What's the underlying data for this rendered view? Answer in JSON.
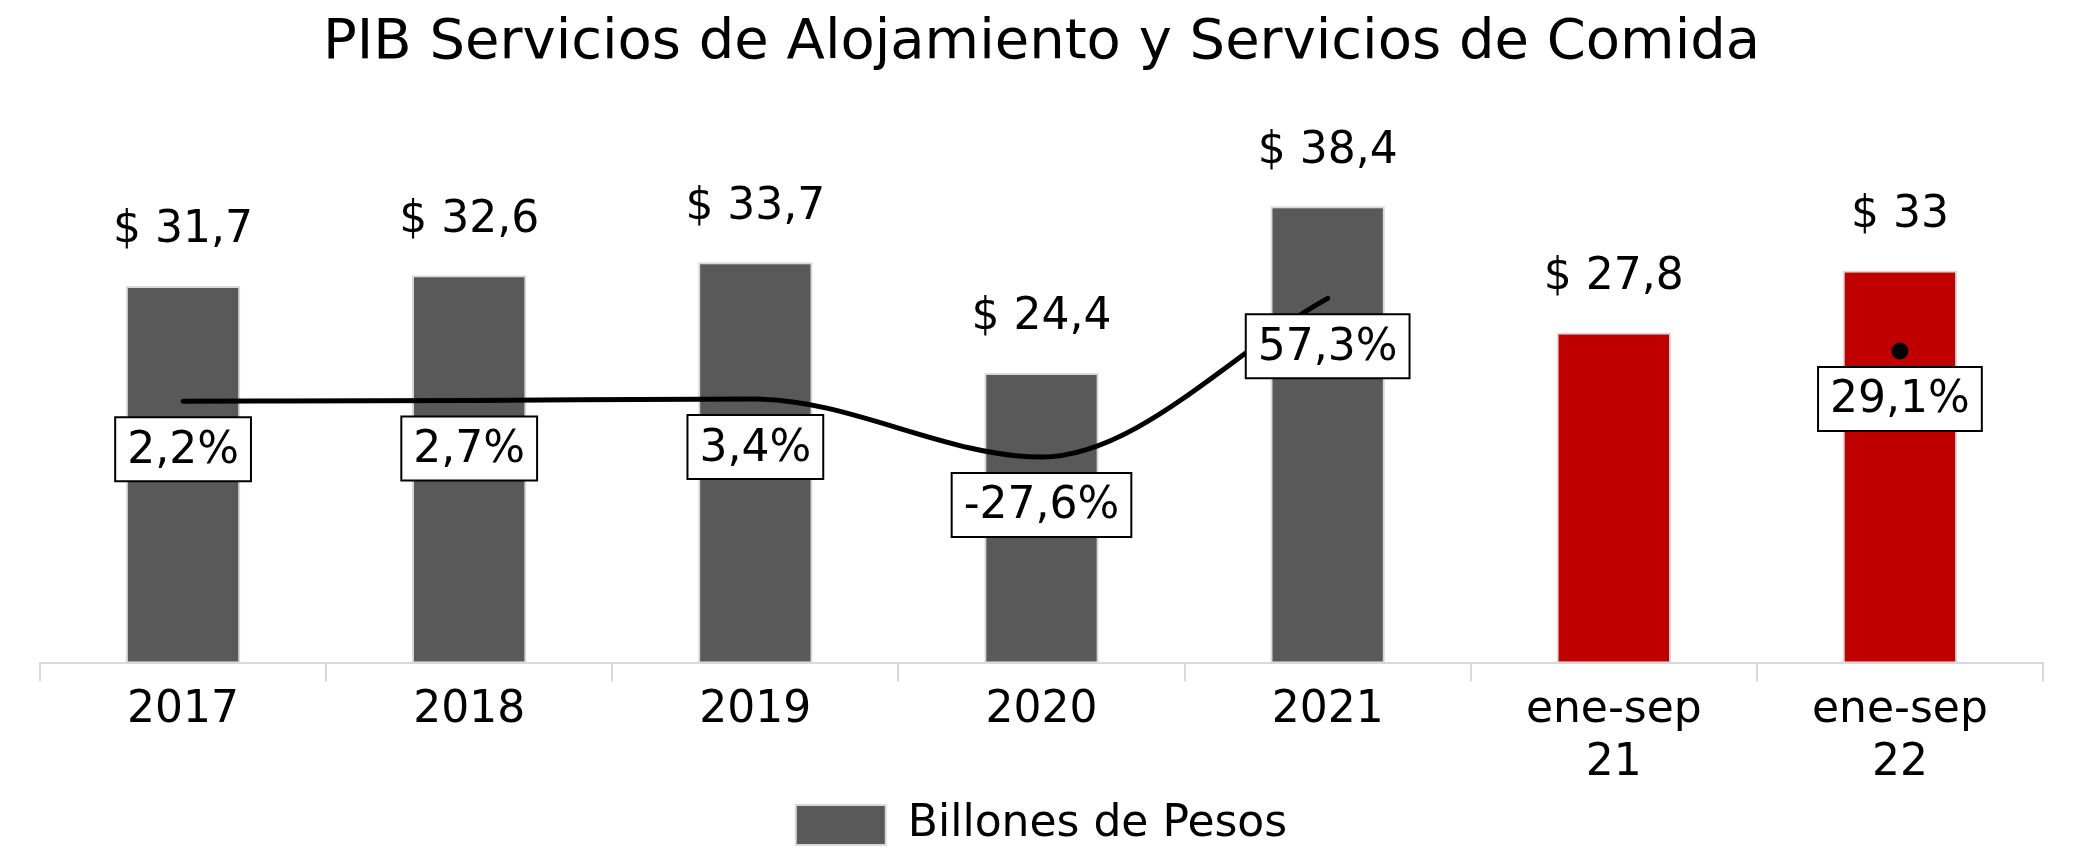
{
  "chart_data": {
    "type": "bar",
    "title": "PIB Servicios de Alojamiento y Servicios de Comida",
    "categories": [
      "2017",
      "2018",
      "2019",
      "2020",
      "2021",
      "ene-sep 21",
      "ene-sep 22"
    ],
    "series": [
      {
        "name": "Billones de Pesos",
        "color": "#595959",
        "colors": [
          "#595959",
          "#595959",
          "#595959",
          "#595959",
          "#595959",
          "#c00000",
          "#c00000"
        ],
        "values": [
          31.7,
          32.6,
          33.7,
          24.4,
          38.4,
          27.8,
          33
        ],
        "value_labels": [
          "$ 31,7",
          "$ 32,6",
          "$ 33,7",
          "$ 24,4",
          "$ 38,4",
          "$ 27,8",
          "$ 33"
        ]
      },
      {
        "type": "line",
        "axis": "y2",
        "color": "#000000",
        "values": [
          2.2,
          2.7,
          3.4,
          -27.6,
          57.3,
          null,
          29.1
        ],
        "value_labels": [
          "2,2%",
          "2,7%",
          "3,4%",
          "-27,6%",
          "57,3%",
          null,
          "29,1%"
        ]
      }
    ],
    "legend": "bottom",
    "grid": false,
    "marker": "none",
    "line_style": "solid",
    "tick_labels": "x"
  }
}
